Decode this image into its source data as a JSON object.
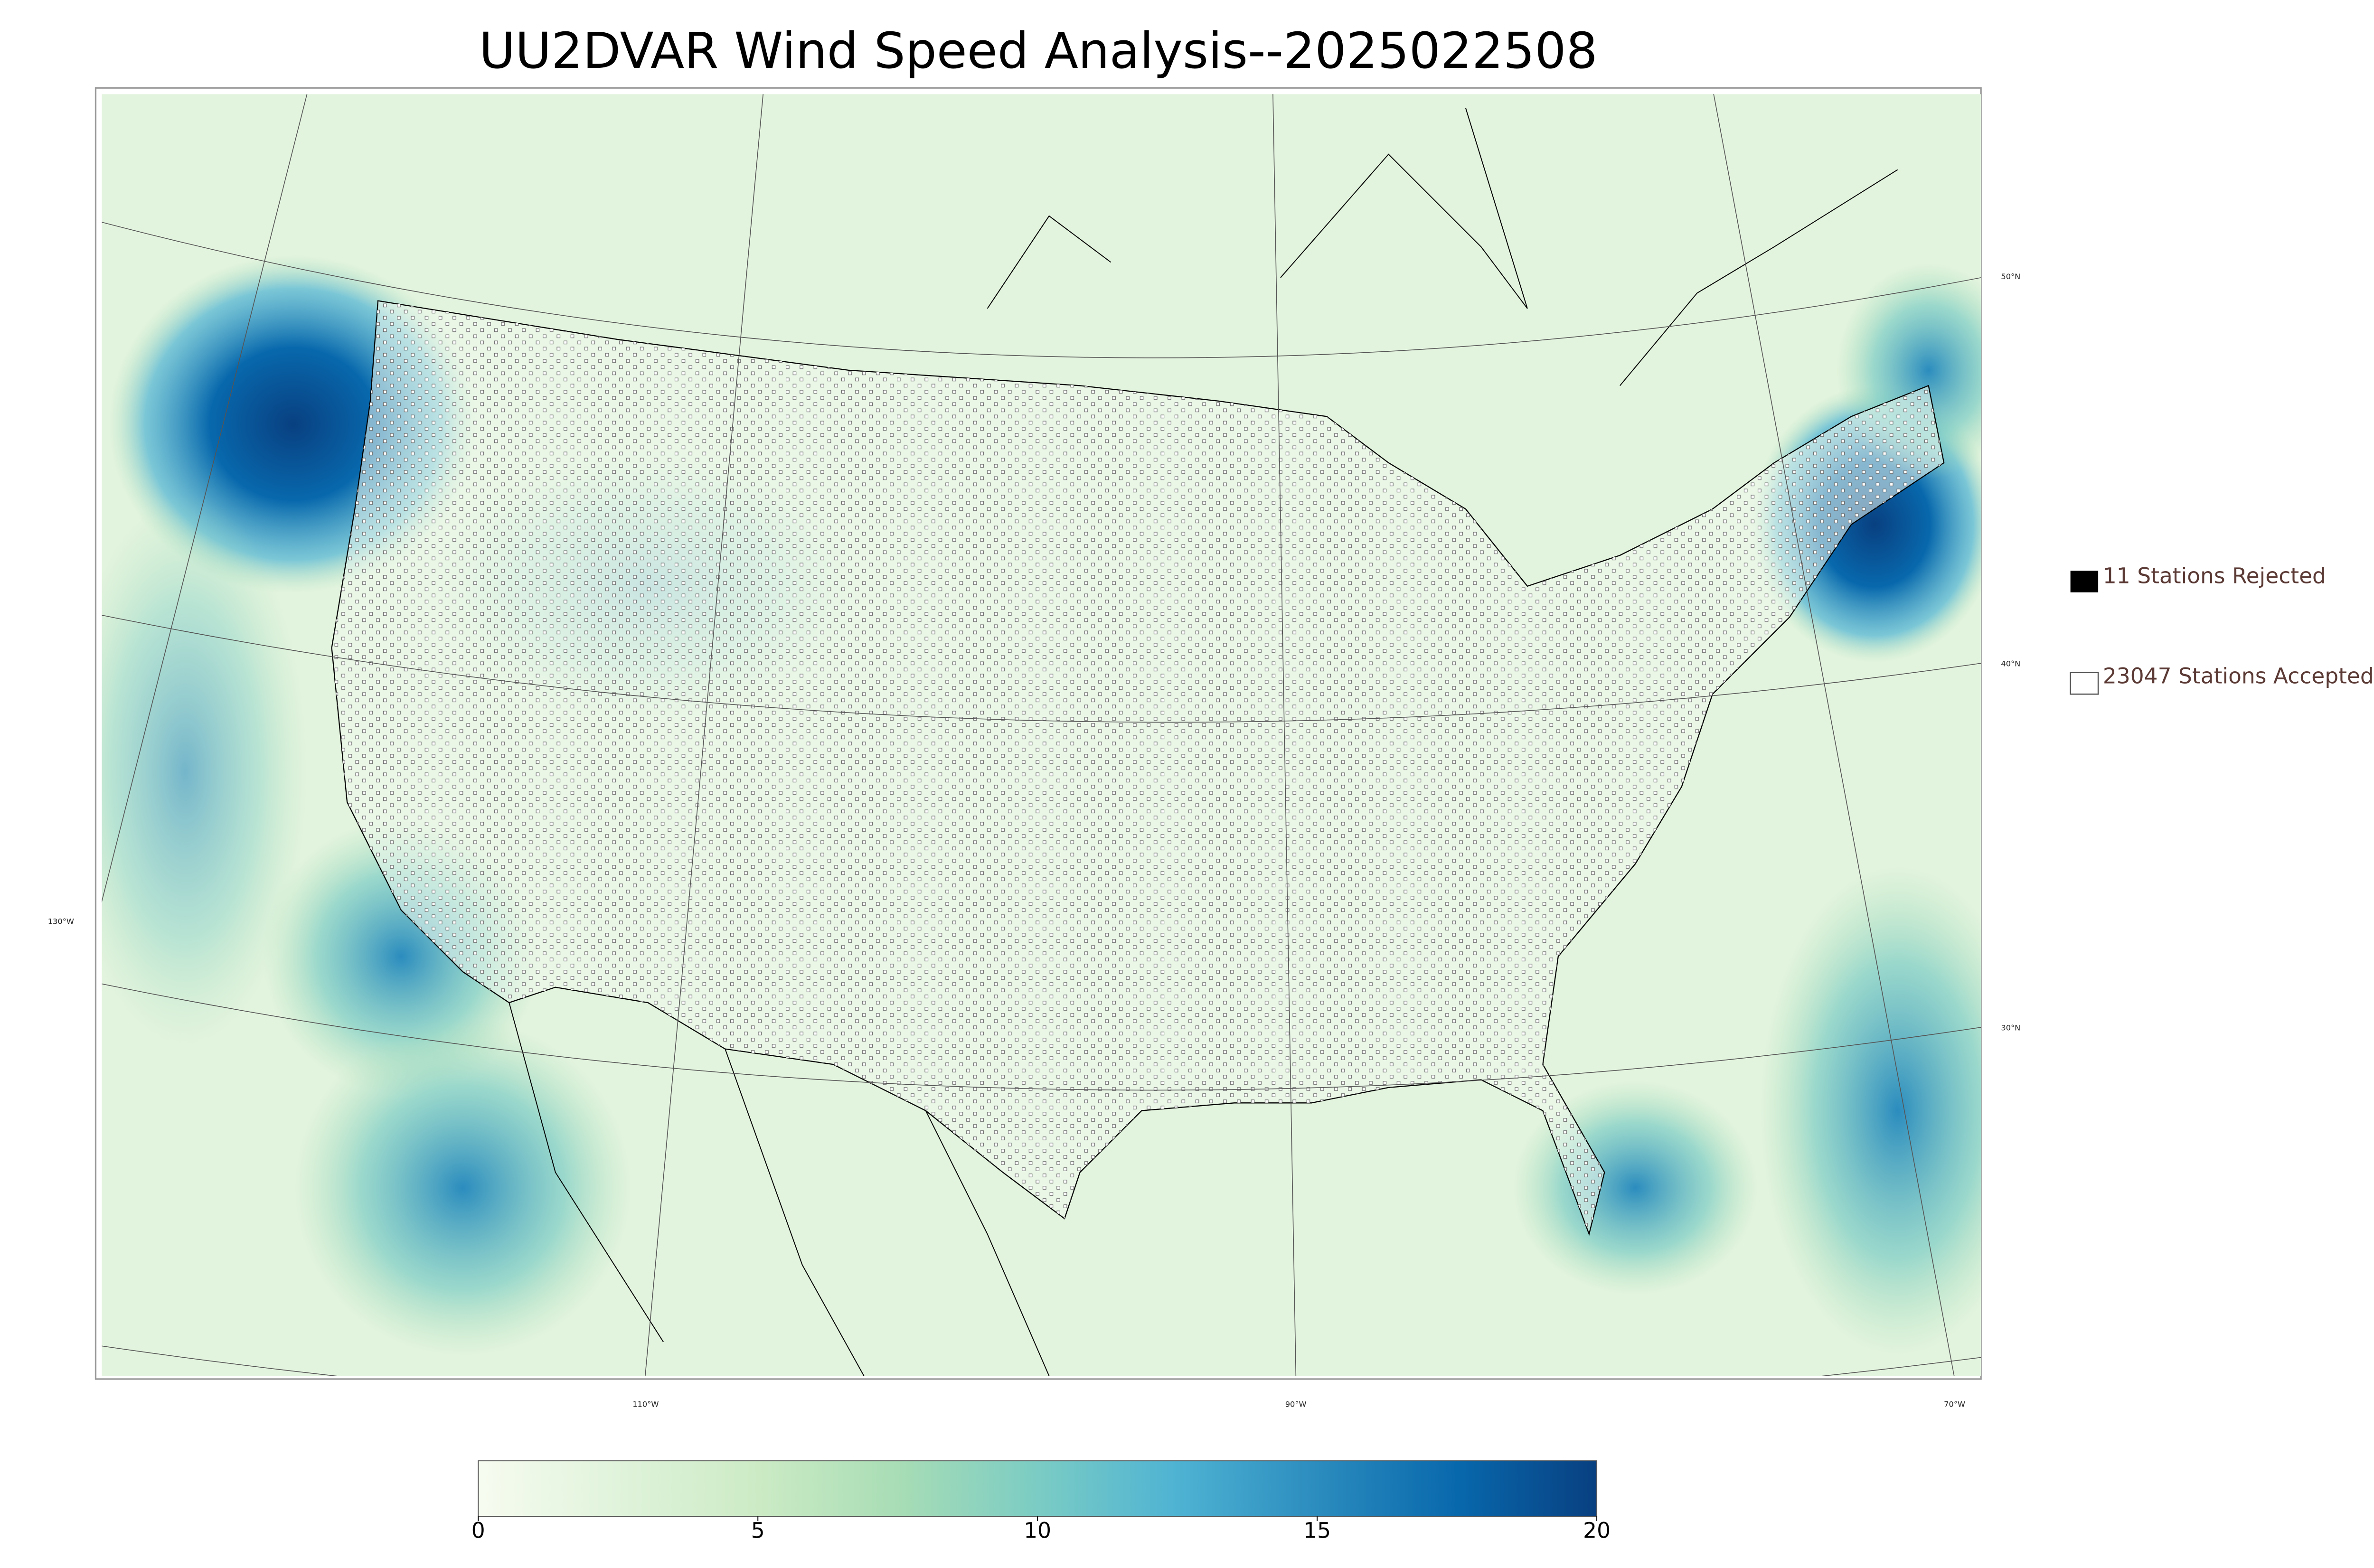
{
  "title": "UU2DVAR Wind Speed Analysis--2025022508",
  "graticule": {
    "latitudes": [
      "50°N",
      "40°N",
      "30°N"
    ],
    "longitudes": [
      "130°W",
      "110°W",
      "90°W",
      "70°W"
    ]
  },
  "legend": [
    "11 Stations Rejected",
    "23047 Stations Accepted"
  ],
  "colorbar": {
    "lim": [
      0,
      20
    ],
    "ticks": [
      0,
      5,
      10,
      15,
      20
    ],
    "colors": [
      "#f7fcf0",
      "#e0f3db",
      "#ccebc5",
      "#a8ddb5",
      "#7bccc4",
      "#4eb3d3",
      "#2b8cbe",
      "#0868ac",
      "#084081"
    ]
  }
}
